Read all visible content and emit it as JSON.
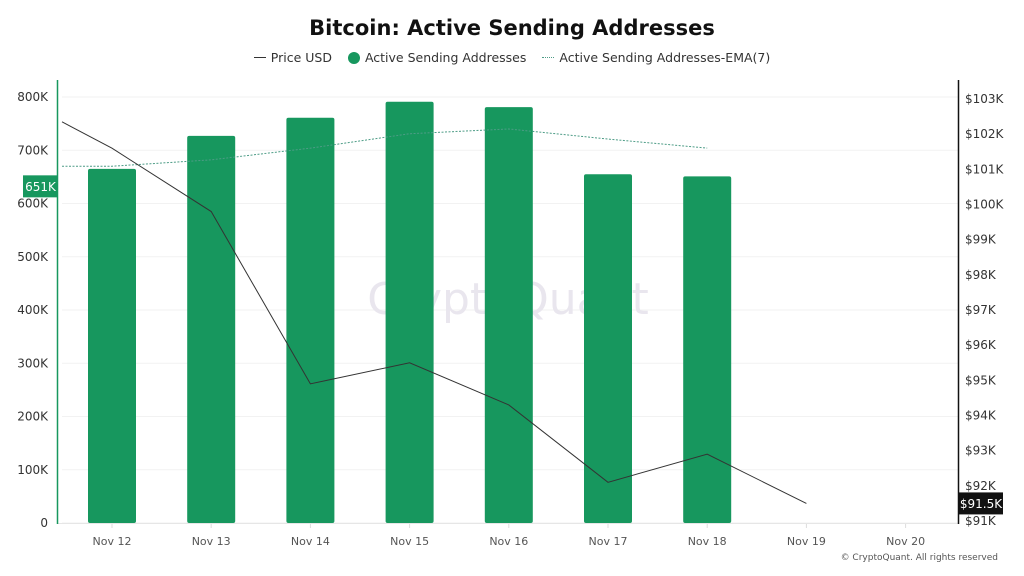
{
  "header": {
    "title": "Bitcoin: Active Sending Addresses"
  },
  "legend": {
    "items": [
      {
        "label": "Price USD",
        "type": "line",
        "color": "#333333"
      },
      {
        "label": "Active Sending Addresses",
        "type": "bar",
        "color": "#17975e"
      },
      {
        "label": "Active Sending Addresses-EMA(7)",
        "type": "dotted-line",
        "color": "#4d9c86"
      }
    ]
  },
  "axes": {
    "left_ticks": [
      "0",
      "100K",
      "200K",
      "300K",
      "400K",
      "500K",
      "600K",
      "700K",
      "800K"
    ],
    "right_ticks": [
      "$91K",
      "$92K",
      "$93K",
      "$94K",
      "$95K",
      "$96K",
      "$97K",
      "$98K",
      "$99K",
      "$100K",
      "$101K",
      "$102K",
      "$103K"
    ],
    "x_ticks": [
      "Nov 12",
      "Nov 13",
      "Nov 14",
      "Nov 15",
      "Nov 16",
      "Nov 17",
      "Nov 18",
      "Nov 19",
      "Nov 20"
    ],
    "left_marker": "651K",
    "right_marker": "$91.5K"
  },
  "watermark": "CryptoQuant",
  "footer": {
    "copyright": "© CryptoQuant. All rights reserved"
  },
  "colors": {
    "bar": "#17975e",
    "price": "#333333",
    "ema": "#4d9c86",
    "left_axis": "#17975e",
    "right_axis": "#111111"
  },
  "chart_data": {
    "type": "bar",
    "title": "Bitcoin: Active Sending Addresses",
    "categories": [
      "Nov 12",
      "Nov 13",
      "Nov 14",
      "Nov 15",
      "Nov 16",
      "Nov 17",
      "Nov 18",
      "Nov 19",
      "Nov 20"
    ],
    "series": [
      {
        "name": "Active Sending Addresses",
        "type": "bar",
        "axis": "left",
        "values": [
          665000,
          727000,
          761000,
          791000,
          781000,
          655000,
          651000,
          null,
          null
        ]
      },
      {
        "name": "Active Sending Addresses-EMA(7)",
        "type": "line",
        "style": "dotted",
        "axis": "left",
        "values": [
          670000,
          682000,
          704000,
          731000,
          740000,
          721000,
          704000,
          null,
          null
        ]
      },
      {
        "name": "Price USD",
        "type": "line",
        "axis": "right",
        "start_value": 102350,
        "values": [
          101600,
          99800,
          94900,
          95500,
          94300,
          92100,
          92900,
          91500,
          null
        ]
      }
    ],
    "ylabel_left": "",
    "ylabel_right": "",
    "xlabel": "",
    "ylim_left": [
      0,
      800000
    ],
    "ylim_right": [
      91000,
      103000
    ],
    "legend_position": "top",
    "grid": true,
    "last_value_markers": {
      "left": "651K",
      "right": "$91.5K"
    }
  }
}
